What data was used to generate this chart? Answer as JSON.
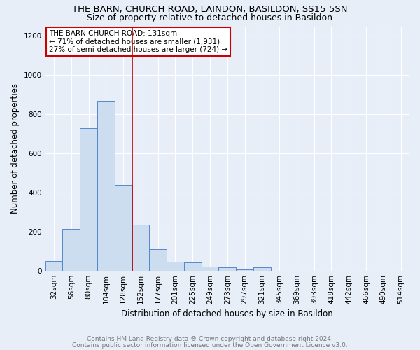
{
  "title1": "THE BARN, CHURCH ROAD, LAINDON, BASILDON, SS15 5SN",
  "title2": "Size of property relative to detached houses in Basildon",
  "xlabel": "Distribution of detached houses by size in Basildon",
  "ylabel": "Number of detached properties",
  "footnote1": "Contains HM Land Registry data ® Crown copyright and database right 2024.",
  "footnote2": "Contains public sector information licensed under the Open Government Licence v3.0.",
  "bar_labels": [
    "32sqm",
    "56sqm",
    "80sqm",
    "104sqm",
    "128sqm",
    "152sqm",
    "177sqm",
    "201sqm",
    "225sqm",
    "249sqm",
    "273sqm",
    "297sqm",
    "321sqm",
    "345sqm",
    "369sqm",
    "393sqm",
    "418sqm",
    "442sqm",
    "466sqm",
    "490sqm",
    "514sqm"
  ],
  "bar_values": [
    50,
    215,
    730,
    870,
    440,
    235,
    110,
    45,
    42,
    22,
    18,
    5,
    15,
    0,
    0,
    0,
    0,
    0,
    0,
    0,
    0
  ],
  "bar_color": "#ccddf0",
  "bar_edge_color": "#5588cc",
  "bg_color": "#e8eef8",
  "grid_color": "#ffffff",
  "ref_line_x": 4.5,
  "ref_line_color": "#cc0000",
  "annotation_text": "THE BARN CHURCH ROAD: 131sqm\n← 71% of detached houses are smaller (1,931)\n27% of semi-detached houses are larger (724) →",
  "annotation_box_color": "#ffffff",
  "annotation_box_edge_color": "#cc0000",
  "ylim": [
    0,
    1250
  ],
  "yticks": [
    0,
    200,
    400,
    600,
    800,
    1000,
    1200
  ],
  "title1_fontsize": 9.5,
  "title2_fontsize": 9,
  "ylabel_fontsize": 8.5,
  "xlabel_fontsize": 8.5,
  "tick_fontsize": 7.5,
  "footnote_fontsize": 6.5,
  "footnote_color": "#777777"
}
